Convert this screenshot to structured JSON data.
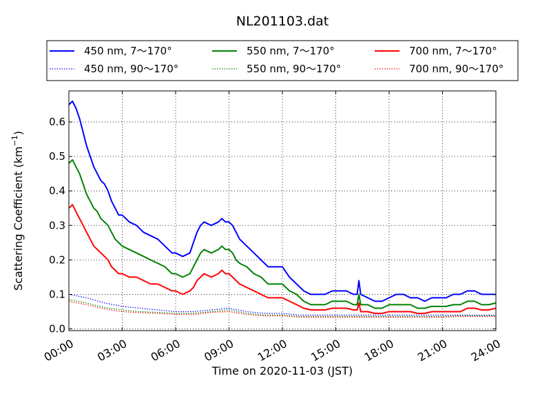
{
  "chart_data": {
    "type": "line",
    "title": "NL201103.dat",
    "xlabel": "Time on 2020-11-03 (JST)",
    "ylabel": "Scattering Coefficient (km",
    "ylabel_sup": "−1",
    "ylabel_close": ")",
    "xlim": [
      0,
      24
    ],
    "ylim": [
      -0.005,
      0.69
    ],
    "x_ticks": [
      0,
      3,
      6,
      9,
      12,
      15,
      18,
      21,
      24
    ],
    "x_tick_labels": [
      "00:00",
      "03:00",
      "06:00",
      "09:00",
      "12:00",
      "15:00",
      "18:00",
      "21:00",
      "24:00"
    ],
    "y_ticks": [
      0.0,
      0.1,
      0.2,
      0.3,
      0.4,
      0.5,
      0.6
    ],
    "y_tick_labels": [
      "0.0",
      "0.1",
      "0.2",
      "0.3",
      "0.4",
      "0.5",
      "0.6"
    ],
    "grid": true,
    "legend_placement": "top, above plot, 3 columns",
    "series": [
      {
        "name": "450 nm, 7～170°",
        "color": "#0000ff",
        "style": "solid",
        "x": [
          0.0,
          0.2,
          0.4,
          0.6,
          0.8,
          1.0,
          1.2,
          1.4,
          1.6,
          1.8,
          2.0,
          2.2,
          2.4,
          2.6,
          2.8,
          3.0,
          3.4,
          3.8,
          4.2,
          4.6,
          5.0,
          5.4,
          5.8,
          6.0,
          6.4,
          6.8,
          7.0,
          7.2,
          7.4,
          7.6,
          8.0,
          8.4,
          8.6,
          8.8,
          9.0,
          9.2,
          9.4,
          9.6,
          10.0,
          10.4,
          10.8,
          11.2,
          11.6,
          12.0,
          12.4,
          12.8,
          13.2,
          13.6,
          14.0,
          14.4,
          14.8,
          15.2,
          15.6,
          16.0,
          16.2,
          16.3,
          16.4,
          16.8,
          17.2,
          17.6,
          18.0,
          18.4,
          18.8,
          19.2,
          19.6,
          20.0,
          20.4,
          20.8,
          21.2,
          21.6,
          22.0,
          22.4,
          22.8,
          23.2,
          23.6,
          24.0
        ],
        "y": [
          0.65,
          0.66,
          0.64,
          0.61,
          0.57,
          0.53,
          0.5,
          0.47,
          0.45,
          0.43,
          0.42,
          0.4,
          0.37,
          0.35,
          0.33,
          0.33,
          0.31,
          0.3,
          0.28,
          0.27,
          0.26,
          0.24,
          0.22,
          0.22,
          0.21,
          0.22,
          0.25,
          0.28,
          0.3,
          0.31,
          0.3,
          0.31,
          0.32,
          0.31,
          0.31,
          0.3,
          0.28,
          0.26,
          0.24,
          0.22,
          0.2,
          0.18,
          0.18,
          0.18,
          0.15,
          0.13,
          0.11,
          0.1,
          0.1,
          0.1,
          0.11,
          0.11,
          0.11,
          0.1,
          0.1,
          0.14,
          0.1,
          0.09,
          0.08,
          0.08,
          0.09,
          0.1,
          0.1,
          0.09,
          0.09,
          0.08,
          0.09,
          0.09,
          0.09,
          0.1,
          0.1,
          0.11,
          0.11,
          0.1,
          0.1,
          0.1
        ]
      },
      {
        "name": "550 nm, 7～170°",
        "color": "#008000",
        "style": "solid",
        "x": [
          0.0,
          0.2,
          0.4,
          0.6,
          0.8,
          1.0,
          1.2,
          1.4,
          1.6,
          1.8,
          2.0,
          2.2,
          2.4,
          2.6,
          2.8,
          3.0,
          3.4,
          3.8,
          4.2,
          4.6,
          5.0,
          5.4,
          5.8,
          6.0,
          6.4,
          6.8,
          7.0,
          7.2,
          7.4,
          7.6,
          8.0,
          8.4,
          8.6,
          8.8,
          9.0,
          9.2,
          9.4,
          9.6,
          10.0,
          10.4,
          10.8,
          11.2,
          11.6,
          12.0,
          12.4,
          12.8,
          13.2,
          13.6,
          14.0,
          14.4,
          14.8,
          15.2,
          15.6,
          16.0,
          16.2,
          16.3,
          16.4,
          16.8,
          17.2,
          17.6,
          18.0,
          18.4,
          18.8,
          19.2,
          19.6,
          20.0,
          20.4,
          20.8,
          21.2,
          21.6,
          22.0,
          22.4,
          22.8,
          23.2,
          23.6,
          24.0
        ],
        "y": [
          0.48,
          0.49,
          0.47,
          0.45,
          0.42,
          0.39,
          0.37,
          0.35,
          0.34,
          0.32,
          0.31,
          0.3,
          0.28,
          0.26,
          0.25,
          0.24,
          0.23,
          0.22,
          0.21,
          0.2,
          0.19,
          0.18,
          0.16,
          0.16,
          0.15,
          0.16,
          0.18,
          0.2,
          0.22,
          0.23,
          0.22,
          0.23,
          0.24,
          0.23,
          0.23,
          0.22,
          0.2,
          0.19,
          0.18,
          0.16,
          0.15,
          0.13,
          0.13,
          0.13,
          0.11,
          0.1,
          0.08,
          0.07,
          0.07,
          0.07,
          0.08,
          0.08,
          0.08,
          0.07,
          0.07,
          0.1,
          0.07,
          0.07,
          0.06,
          0.06,
          0.07,
          0.07,
          0.07,
          0.07,
          0.06,
          0.06,
          0.065,
          0.065,
          0.065,
          0.07,
          0.07,
          0.08,
          0.08,
          0.07,
          0.07,
          0.075
        ]
      },
      {
        "name": "700 nm, 7～170°",
        "color": "#ff0000",
        "style": "solid",
        "x": [
          0.0,
          0.2,
          0.4,
          0.6,
          0.8,
          1.0,
          1.2,
          1.4,
          1.6,
          1.8,
          2.0,
          2.2,
          2.4,
          2.6,
          2.8,
          3.0,
          3.4,
          3.8,
          4.2,
          4.6,
          5.0,
          5.4,
          5.8,
          6.0,
          6.4,
          6.8,
          7.0,
          7.2,
          7.4,
          7.6,
          8.0,
          8.4,
          8.6,
          8.8,
          9.0,
          9.2,
          9.4,
          9.6,
          10.0,
          10.4,
          10.8,
          11.2,
          11.6,
          12.0,
          12.4,
          12.8,
          13.2,
          13.6,
          14.0,
          14.4,
          14.8,
          15.2,
          15.6,
          16.0,
          16.2,
          16.3,
          16.4,
          16.8,
          17.2,
          17.6,
          18.0,
          18.4,
          18.8,
          19.2,
          19.6,
          20.0,
          20.4,
          20.8,
          21.2,
          21.6,
          22.0,
          22.4,
          22.8,
          23.2,
          23.6,
          24.0
        ],
        "y": [
          0.35,
          0.36,
          0.34,
          0.32,
          0.3,
          0.28,
          0.26,
          0.24,
          0.23,
          0.22,
          0.21,
          0.2,
          0.18,
          0.17,
          0.16,
          0.16,
          0.15,
          0.15,
          0.14,
          0.13,
          0.13,
          0.12,
          0.11,
          0.11,
          0.1,
          0.11,
          0.12,
          0.14,
          0.15,
          0.16,
          0.15,
          0.16,
          0.17,
          0.16,
          0.16,
          0.15,
          0.14,
          0.13,
          0.12,
          0.11,
          0.1,
          0.09,
          0.09,
          0.09,
          0.08,
          0.07,
          0.06,
          0.055,
          0.055,
          0.055,
          0.06,
          0.06,
          0.06,
          0.055,
          0.055,
          0.075,
          0.05,
          0.05,
          0.045,
          0.045,
          0.05,
          0.05,
          0.05,
          0.05,
          0.045,
          0.045,
          0.05,
          0.05,
          0.05,
          0.05,
          0.05,
          0.06,
          0.06,
          0.055,
          0.055,
          0.06
        ]
      },
      {
        "name": "450 nm, 90～170°",
        "color": "#0000ff",
        "style": "dotted",
        "x": [
          0,
          1,
          2,
          3,
          4,
          5,
          6,
          7,
          8,
          9,
          10,
          11,
          12,
          13,
          14,
          15,
          16,
          17,
          18,
          19,
          20,
          21,
          22,
          23,
          24
        ],
        "y": [
          0.1,
          0.09,
          0.075,
          0.065,
          0.06,
          0.055,
          0.05,
          0.05,
          0.055,
          0.06,
          0.05,
          0.045,
          0.045,
          0.04,
          0.04,
          0.04,
          0.04,
          0.04,
          0.04,
          0.04,
          0.04,
          0.04,
          0.04,
          0.04,
          0.04
        ]
      },
      {
        "name": "550 nm, 90～170°",
        "color": "#008000",
        "style": "dotted",
        "x": [
          0,
          1,
          2,
          3,
          4,
          5,
          6,
          7,
          8,
          9,
          10,
          11,
          12,
          13,
          14,
          15,
          16,
          17,
          18,
          19,
          20,
          21,
          22,
          23,
          24
        ],
        "y": [
          0.085,
          0.075,
          0.062,
          0.055,
          0.05,
          0.048,
          0.045,
          0.045,
          0.05,
          0.055,
          0.045,
          0.04,
          0.04,
          0.036,
          0.036,
          0.036,
          0.036,
          0.036,
          0.036,
          0.036,
          0.036,
          0.036,
          0.038,
          0.038,
          0.038
        ]
      },
      {
        "name": "700 nm, 90～170°",
        "color": "#ff0000",
        "style": "dotted",
        "x": [
          0,
          1,
          2,
          3,
          4,
          5,
          6,
          7,
          8,
          9,
          10,
          11,
          12,
          13,
          14,
          15,
          16,
          17,
          18,
          19,
          20,
          21,
          22,
          23,
          24
        ],
        "y": [
          0.08,
          0.07,
          0.058,
          0.05,
          0.047,
          0.045,
          0.042,
          0.042,
          0.048,
          0.05,
          0.042,
          0.038,
          0.038,
          0.034,
          0.034,
          0.034,
          0.034,
          0.034,
          0.034,
          0.034,
          0.034,
          0.034,
          0.036,
          0.036,
          0.036
        ]
      }
    ]
  }
}
